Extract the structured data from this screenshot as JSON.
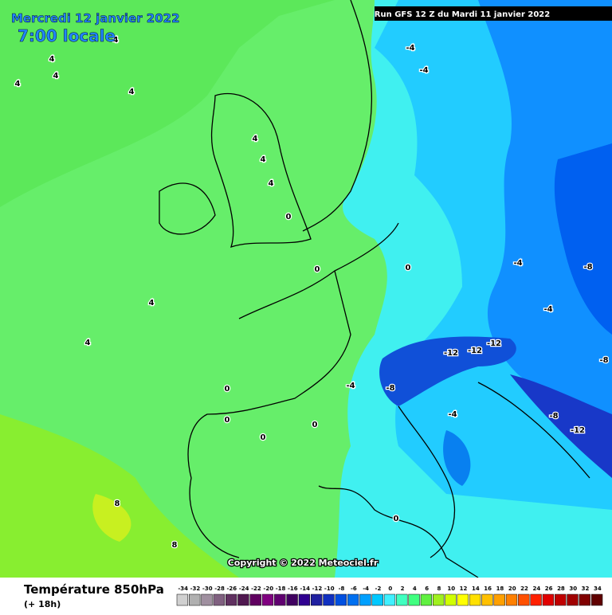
{
  "header": {
    "date": "Mercredi 12 janvier 2022",
    "time": "7:00 locale",
    "run": "Run GFS 12 Z du Mardi 11 janvier 2022"
  },
  "map": {
    "copyright": "Copyright © 2022 Meteociel.fr",
    "contour_labels": [
      "4",
      "4",
      "4",
      "4",
      "4",
      "4",
      "4",
      "4",
      "4",
      "4",
      "0",
      "0",
      "0",
      "0",
      "0",
      "0",
      "0",
      "-4",
      "-4",
      "-4",
      "-4",
      "-8",
      "-8",
      "-8",
      "-12",
      "-12",
      "-12",
      "-12",
      "8",
      "8",
      "-8",
      "-4",
      "-4",
      "0"
    ]
  },
  "legend": {
    "title": "Température 850hPa",
    "subtitle": "(+ 18h)",
    "ticks": [
      -34,
      -32,
      -30,
      -28,
      -26,
      -24,
      -22,
      -20,
      -18,
      -16,
      -14,
      -12,
      -10,
      -8,
      -6,
      -4,
      -2,
      0,
      2,
      4,
      6,
      8,
      10,
      12,
      14,
      16,
      18,
      20,
      22,
      24,
      26,
      28,
      30,
      32,
      34
    ],
    "colors": [
      "#d0d0d0",
      "#b0b0b0",
      "#a090a0",
      "#806080",
      "#603060",
      "#501850",
      "#600060",
      "#800080",
      "#600070",
      "#400060",
      "#300090",
      "#2020a0",
      "#1030c0",
      "#0050e0",
      "#0070f0",
      "#00a0ff",
      "#00c8ff",
      "#40f0ff",
      "#40ffc0",
      "#40ff80",
      "#60f040",
      "#a0f020",
      "#d0ff00",
      "#ffff00",
      "#ffe000",
      "#ffc000",
      "#ffa000",
      "#ff8000",
      "#ff5000",
      "#ff2000",
      "#e00000",
      "#c00000",
      "#a00000",
      "#800000",
      "#600000"
    ]
  }
}
